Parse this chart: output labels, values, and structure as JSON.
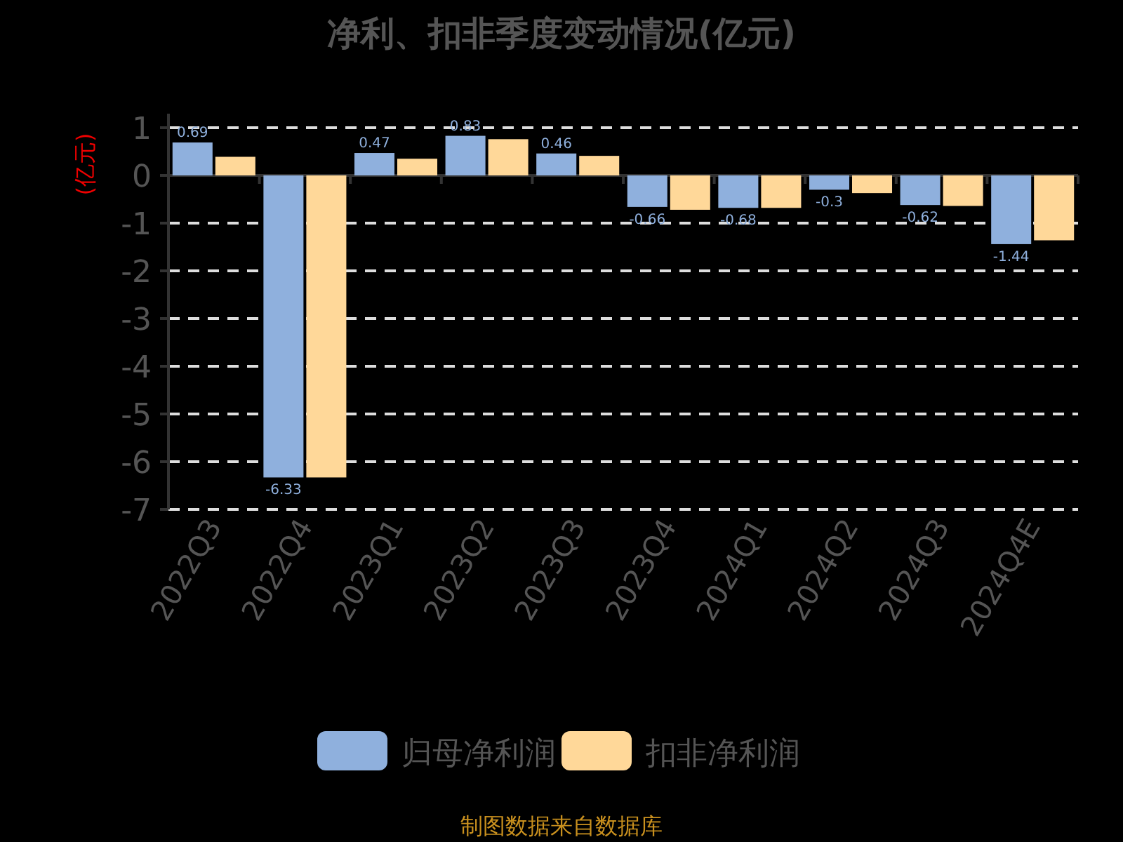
{
  "chart_data": {
    "type": "bar",
    "title": "净利、扣非季度变动情况(亿元)",
    "ylabel": "(亿元)",
    "categories": [
      "2022Q3",
      "2022Q4",
      "2023Q1",
      "2023Q2",
      "2023Q3",
      "2023Q4",
      "2024Q1",
      "2024Q2",
      "2024Q3",
      "2024Q4E"
    ],
    "series": [
      {
        "name": "归母净利润",
        "color": "#8fb0dd",
        "values": [
          0.69,
          -6.33,
          0.47,
          0.83,
          0.46,
          -0.66,
          -0.68,
          -0.3,
          -0.62,
          -1.44
        ],
        "value_labels": [
          "0.69",
          "-6.33",
          "0.47",
          "0.83",
          "0.46",
          "-0.66",
          "-0.68",
          "-0.3",
          "-0.62",
          "-1.44"
        ]
      },
      {
        "name": "扣非净利润",
        "color": "#ffd899",
        "values": [
          0.39,
          -6.33,
          0.35,
          0.76,
          0.41,
          -0.72,
          -0.68,
          -0.37,
          -0.64,
          -1.36
        ]
      }
    ],
    "ylim": [
      -7,
      1
    ],
    "yticks": [
      -7,
      -6,
      -5,
      -4,
      -3,
      -2,
      -1,
      0,
      1
    ],
    "grid": "y",
    "legend": "bottom",
    "annotations": [
      "制图数据来自数据库"
    ]
  }
}
